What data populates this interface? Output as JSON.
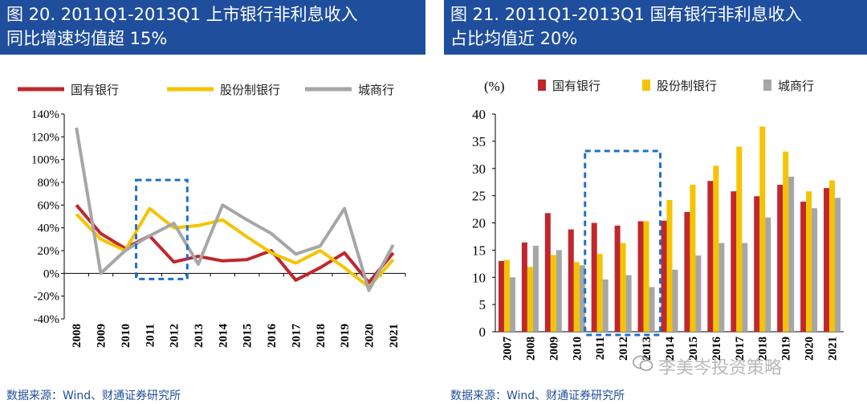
{
  "left": {
    "title_line1": "图 20. 2011Q1-2013Q1 上市银行非利息收入",
    "title_line2": "同比增速均值超 15%",
    "source": "数据来源：Wind、财通证券研究所"
  },
  "right": {
    "title_line1": "图 21. 2011Q1-2013Q1 国有银行非利息收入",
    "title_line2": "占比均值近 20%",
    "source": "数据来源：Wind、财通证券研究所",
    "y_unit": "(%)"
  },
  "watermark": "李美岑投资策略",
  "colors": {
    "soe": "#c0272d",
    "joint": "#f5c400",
    "city": "#a6a6a6",
    "header": "#1f4e9c",
    "highlight": "#1f6fc5"
  },
  "chart_data": [
    {
      "type": "line",
      "title": "2011Q1-2013Q1 上市银行非利息收入同比增速",
      "categories": [
        "2008",
        "2009",
        "2010",
        "2011",
        "2012",
        "2013",
        "2014",
        "2015",
        "2016",
        "2017",
        "2018",
        "2019",
        "2020",
        "2021"
      ],
      "ylim": [
        -40,
        140
      ],
      "yticks": [
        -40,
        -20,
        0,
        20,
        40,
        60,
        80,
        100,
        120,
        140
      ],
      "ytick_labels": [
        "-40%",
        "-20%",
        "0%",
        "20%",
        "40%",
        "60%",
        "80%",
        "100%",
        "120%",
        "140%"
      ],
      "highlight": {
        "from": "2011",
        "to": "2012"
      },
      "series": [
        {
          "name": "国有银行",
          "values": [
            60,
            35,
            22,
            33,
            10,
            15,
            11,
            12,
            20,
            -6,
            5,
            18,
            -8,
            18
          ]
        },
        {
          "name": "股份制银行",
          "values": [
            52,
            30,
            20,
            57,
            40,
            42,
            47,
            32,
            18,
            9,
            20,
            5,
            -12,
            12
          ]
        },
        {
          "name": "城商行",
          "values": [
            128,
            0,
            20,
            33,
            44,
            8,
            60,
            47,
            35,
            17,
            24,
            57,
            -15,
            25
          ]
        }
      ]
    },
    {
      "type": "bar",
      "title": "2011Q1-2013Q1 国有银行非利息收入占比",
      "categories": [
        "2007",
        "2008",
        "2009",
        "2010",
        "2011",
        "2012",
        "2013",
        "2014",
        "2015",
        "2016",
        "2017",
        "2018",
        "2019",
        "2020",
        "2021"
      ],
      "ylim": [
        0,
        40
      ],
      "yticks": [
        0,
        5,
        10,
        15,
        20,
        25,
        30,
        35,
        40
      ],
      "ylabel": "(%)",
      "highlight": {
        "from": "2011",
        "to": "2013"
      },
      "series": [
        {
          "name": "国有银行",
          "values": [
            13,
            16.4,
            21.8,
            18.8,
            20,
            19.5,
            20.3,
            20.4,
            22,
            27.7,
            25.8,
            24.9,
            27,
            23.9,
            26.4
          ]
        },
        {
          "name": "股份制银行",
          "values": [
            13.2,
            11.9,
            14.1,
            12.8,
            14.3,
            16.3,
            20.3,
            24.2,
            27,
            30.5,
            34,
            37.7,
            33.1,
            25.8,
            27.8
          ]
        },
        {
          "name": "城商行",
          "values": [
            10,
            15.8,
            15,
            12.2,
            9.6,
            10.4,
            8.2,
            11.4,
            14,
            16.3,
            16.3,
            21,
            28.5,
            22.7,
            24.6
          ]
        }
      ]
    }
  ]
}
